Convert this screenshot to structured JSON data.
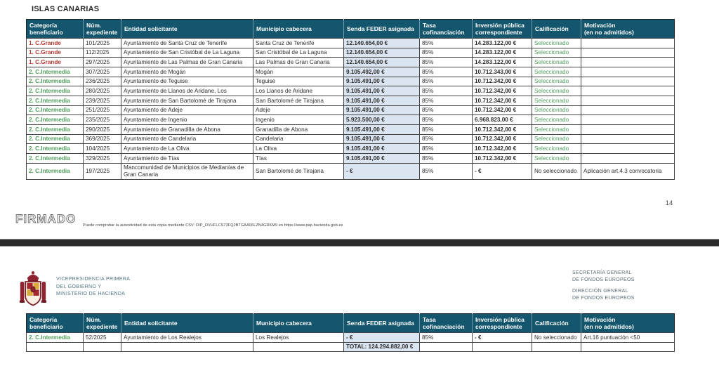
{
  "colors": {
    "header_bg": "#14566e",
    "senda_column_bg": "#dbe5f1",
    "categoria_grande": "#b43a31",
    "categoria_intermedia": "#4f9e5c",
    "seleccionado_green": "#4f9e5c"
  },
  "columns": [
    "Categoría\nbeneficiario",
    "Núm.\nexpediente",
    "Entidad solicitante",
    "Municipio cabecera",
    "Senda FEDER asignada",
    "Tasa\ncofinanciación",
    "Inversión pública\ncorrespondiente",
    "Calificación",
    "Motivación\n(en no admitidos)"
  ],
  "page1": {
    "heading": "ISLAS CANARIAS",
    "page_number": "14",
    "stamp": "FIRMADO",
    "csv_note": "Puede comprobar la autenticidad de esta copia mediante CSV:  OIP_OVHFLCS73FQ2BTGAA06LZN4GRKM9  en https://www.pap.hacienda.gob.es",
    "table": {
      "rows": [
        [
          "1. C.Grande",
          "101/2025",
          "Ayuntamiento de Santa Cruz de Tenerife",
          "Santa Cruz de Tenerife",
          "12.140.654,00 €",
          "85%",
          "14.283.122,00 €",
          "Seleccionado",
          ""
        ],
        [
          "1. C.Grande",
          "112/2025",
          "Ayuntamiento de San Cristóbal de La Laguna",
          "San Cristóbal de La Laguna",
          "12.140.654,00 €",
          "85%",
          "14.283.122,00 €",
          "Seleccionado",
          ""
        ],
        [
          "1. C.Grande",
          "297/2025",
          "Ayuntamiento de Las Palmas de Gran Canaria",
          "Las Palmas de Gran Canaria",
          "12.140.654,00 €",
          "85%",
          "14.283.122,00 €",
          "Seleccionado",
          ""
        ],
        [
          "2. C.Intermedia",
          "307/2025",
          "Ayuntamiento de Mogán",
          "Mogán",
          "9.105.492,00 €",
          "85%",
          "10.712.343,00 €",
          "Seleccionado",
          ""
        ],
        [
          "2. C.Intermedia",
          "236/2025",
          "Ayuntamiento de Teguise",
          "Teguise",
          "9.105.491,00 €",
          "85%",
          "10.712.342,00 €",
          "Seleccionado",
          ""
        ],
        [
          "2. C.Intermedia",
          "280/2025",
          "Ayuntamiento de Llanos de Aridane, Los",
          "Los Llanos de Aridane",
          "9.105.491,00 €",
          "85%",
          "10.712.342,00 €",
          "Seleccionado",
          ""
        ],
        [
          "2. C.Intermedia",
          "239/2025",
          "Ayuntamiento de San Bartolomé de Tirajana",
          "San Bartolomé de Tirajana",
          "9.105.491,00 €",
          "85%",
          "10.712.342,00 €",
          "Seleccionado",
          ""
        ],
        [
          "2. C.Intermedia",
          "251/2025",
          "Ayuntamiento de Adeje",
          "Adeje",
          "9.105.491,00 €",
          "85%",
          "10.712.342,00 €",
          "Seleccionado",
          ""
        ],
        [
          "2. C.Intermedia",
          "235/2025",
          "Ayuntamiento de Ingenio",
          "Ingenio",
          "5.923.500,00 €",
          "85%",
          "6.968.823,00 €",
          "Seleccionado",
          ""
        ],
        [
          "2. C.Intermedia",
          "290/2025",
          "Ayuntamiento de Granadilla de Abona",
          "Granadilla de Abona",
          "9.105.491,00 €",
          "85%",
          "10.712.342,00 €",
          "Seleccionado",
          ""
        ],
        [
          "2. C.Intermedia",
          "369/2025",
          "Ayuntamiento de Candelaria",
          "Candelaria",
          "9.105.491,00 €",
          "85%",
          "10.712.342,00 €",
          "Seleccionado",
          ""
        ],
        [
          "2. C.Intermedia",
          "104/2025",
          "Ayuntamiento de La Oliva",
          "La Oliva",
          "9.105.491,00 €",
          "85%",
          "10.712.342,00 €",
          "Seleccionado",
          ""
        ],
        [
          "2. C.Intermedia",
          "329/2025",
          "Ayuntamiento de Tías",
          "Tías",
          "9.105.491,00 €",
          "85%",
          "10.712.342,00 €",
          "Seleccionado",
          ""
        ],
        [
          "2. C.Intermedia",
          "197/2025",
          "Mancomunidad de Municipios de Medianías de Gran Canaria",
          "San Bartolomé de Tirajana",
          "- €",
          "85%",
          "- €",
          "No seleccionado",
          "Aplicación art.4.3 convocatoria"
        ]
      ]
    }
  },
  "page2": {
    "ministry": [
      "VICEPRESIDENCIA PRIMERA",
      "DEL GOBIERNO Y",
      "MINISTERIO DE HACIENDA"
    ],
    "org_blocks": [
      [
        "SECRETARÍA GENERAL",
        "DE FONDOS EUROPEOS"
      ],
      [
        "DIRECCIÓN GENERAL",
        "DE FONDOS EUROPEOS"
      ]
    ],
    "table": {
      "rows": [
        [
          "2. C.Intermedia",
          "52/2025",
          "Ayuntamiento de Los Realejos",
          "Los Realejos",
          "- €",
          "85%",
          "- €",
          "No seleccionado",
          "Art.16 puntuación <50"
        ]
      ],
      "total_label": "TOTAL: 124.294.882,00 €"
    }
  }
}
